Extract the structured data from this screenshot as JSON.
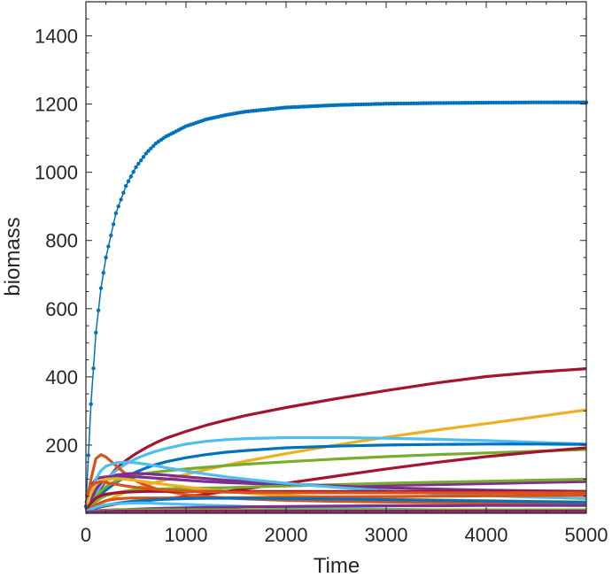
{
  "chart_data": {
    "type": "line",
    "title": "",
    "xlabel": "Time",
    "ylabel": "biomass",
    "xlim": [
      0,
      5000
    ],
    "ylim": [
      0,
      1500
    ],
    "xticks": [
      0,
      1000,
      2000,
      3000,
      4000,
      5000
    ],
    "yticks": [
      200,
      400,
      600,
      800,
      1000,
      1200,
      1400
    ],
    "xtick_labels": [
      "0",
      "1000",
      "2000",
      "3000",
      "4000",
      "5000"
    ],
    "ytick_labels": [
      "200",
      "400",
      "600",
      "800",
      "1000",
      "1200",
      "1400"
    ],
    "grid": false,
    "legend": false,
    "x": [
      0,
      50,
      100,
      150,
      200,
      300,
      400,
      500,
      600,
      700,
      800,
      1000,
      1200,
      1400,
      1600,
      2000,
      2500,
      3000,
      3500,
      4000,
      4500,
      5000
    ],
    "series": [
      {
        "color": "#0072BD",
        "marker": "dot",
        "values": [
          20,
          320,
          530,
          660,
          750,
          880,
          960,
          1015,
          1055,
          1085,
          1105,
          1135,
          1155,
          1168,
          1178,
          1190,
          1197,
          1201,
          1203,
          1204,
          1205,
          1205
        ]
      },
      {
        "color": "#A2142F",
        "values": [
          10,
          30,
          55,
          75,
          95,
          130,
          155,
          175,
          192,
          207,
          220,
          240,
          258,
          273,
          287,
          310,
          336,
          360,
          382,
          401,
          414,
          424
        ]
      },
      {
        "color": "#EDB120",
        "values": [
          5,
          12,
          20,
          28,
          36,
          50,
          62,
          73,
          82,
          91,
          99,
          114,
          128,
          141,
          153,
          175,
          200,
          223,
          244,
          263,
          283,
          303
        ]
      },
      {
        "color": "#4DBEEE",
        "values": [
          10,
          35,
          60,
          80,
          100,
          125,
          145,
          160,
          172,
          182,
          190,
          203,
          211,
          216,
          219,
          222,
          222,
          220,
          217,
          213,
          208,
          203
        ]
      },
      {
        "color": "#0072BD",
        "values": [
          10,
          25,
          40,
          55,
          68,
          90,
          107,
          121,
          133,
          143,
          151,
          163,
          172,
          179,
          184,
          192,
          197,
          200,
          202,
          203,
          203,
          202
        ]
      },
      {
        "color": "#77AC30",
        "values": [
          10,
          30,
          50,
          65,
          78,
          95,
          105,
          112,
          117,
          121,
          124,
          130,
          135,
          140,
          144,
          151,
          159,
          166,
          172,
          177,
          182,
          187
        ]
      },
      {
        "color": "#A2142F",
        "values": [
          5,
          10,
          15,
          19,
          22,
          27,
          31,
          34,
          37,
          40,
          43,
          49,
          56,
          64,
          72,
          88,
          109,
          130,
          149,
          166,
          180,
          192
        ]
      },
      {
        "color": "#D95319",
        "values": [
          20,
          100,
          160,
          172,
          165,
          140,
          115,
          95,
          82,
          72,
          65,
          55,
          49,
          45,
          42,
          38,
          35,
          33,
          31,
          30,
          29,
          28
        ]
      },
      {
        "color": "#7E2F8E",
        "values": [
          30,
          80,
          100,
          105,
          107,
          108,
          108,
          107,
          105,
          103,
          101,
          97,
          93,
          90,
          88,
          84,
          82,
          82,
          84,
          87,
          90,
          93
        ]
      },
      {
        "color": "#77AC30",
        "values": [
          5,
          20,
          35,
          45,
          52,
          60,
          65,
          68,
          70,
          71,
          72,
          73,
          74,
          75,
          77,
          80,
          84,
          88,
          91,
          94,
          97,
          100
        ]
      },
      {
        "color": "#7E2F8E",
        "values": [
          10,
          40,
          70,
          90,
          100,
          112,
          116,
          117,
          116,
          114,
          112,
          107,
          102,
          97,
          93,
          86,
          80,
          75,
          71,
          68,
          66,
          64
        ]
      },
      {
        "color": "#4DBEEE",
        "values": [
          10,
          60,
          100,
          125,
          138,
          148,
          150,
          148,
          144,
          139,
          134,
          124,
          115,
          107,
          100,
          88,
          76,
          66,
          58,
          52,
          47,
          43
        ]
      },
      {
        "color": "#EDB120",
        "values": [
          20,
          60,
          85,
          95,
          100,
          102,
          100,
          96,
          92,
          88,
          84,
          77,
          70,
          64,
          59,
          52,
          46,
          42,
          39,
          37,
          35,
          34
        ]
      },
      {
        "color": "#A2142F",
        "values": [
          10,
          30,
          45,
          52,
          56,
          60,
          62,
          63,
          64,
          64,
          64,
          64,
          64,
          64,
          64,
          64,
          64,
          64,
          64,
          64,
          64,
          64
        ]
      },
      {
        "color": "#D95319",
        "values": [
          5,
          15,
          25,
          32,
          37,
          42,
          44,
          45,
          45,
          45,
          45,
          45,
          45,
          46,
          46,
          47,
          48,
          49,
          50,
          51,
          52,
          53
        ]
      },
      {
        "color": "#0072BD",
        "values": [
          5,
          10,
          16,
          20,
          24,
          29,
          33,
          36,
          38,
          40,
          41,
          43,
          44,
          44,
          44,
          43,
          42,
          40,
          38,
          36,
          34,
          32
        ]
      },
      {
        "color": "#4DBEEE",
        "values": [
          5,
          12,
          18,
          22,
          25,
          28,
          29,
          30,
          30,
          29,
          28,
          26,
          24,
          22,
          20,
          17,
          14,
          12,
          10,
          9,
          8,
          7
        ]
      },
      {
        "color": "#7E2F8E",
        "values": [
          3,
          5,
          7,
          8,
          9,
          10,
          11,
          12,
          13,
          14,
          15,
          16,
          17,
          18,
          19,
          20,
          21,
          22,
          22,
          23,
          23,
          23
        ]
      },
      {
        "color": "#77AC30",
        "values": [
          2,
          4,
          6,
          7,
          8,
          9,
          10,
          10,
          10,
          10,
          10,
          10,
          10,
          10,
          10,
          10,
          10,
          10,
          10,
          10,
          10,
          10
        ]
      },
      {
        "color": "#A2142F",
        "values": [
          2,
          3,
          4,
          5,
          5,
          6,
          6,
          6,
          6,
          6,
          6,
          6,
          6,
          6,
          6,
          6,
          6,
          6,
          6,
          6,
          6,
          6
        ]
      },
      {
        "color": "#D95319",
        "values": [
          50,
          80,
          90,
          92,
          90,
          85,
          80,
          76,
          73,
          70,
          68,
          65,
          63,
          62,
          61,
          60,
          60,
          60,
          60,
          60,
          60,
          60
        ]
      },
      {
        "color": "#7E2F8E",
        "values": [
          3,
          3,
          3,
          3,
          3,
          3,
          3,
          3,
          3,
          3,
          3,
          3,
          3,
          3,
          3,
          3,
          3,
          3,
          3,
          3,
          3,
          3
        ]
      }
    ]
  }
}
